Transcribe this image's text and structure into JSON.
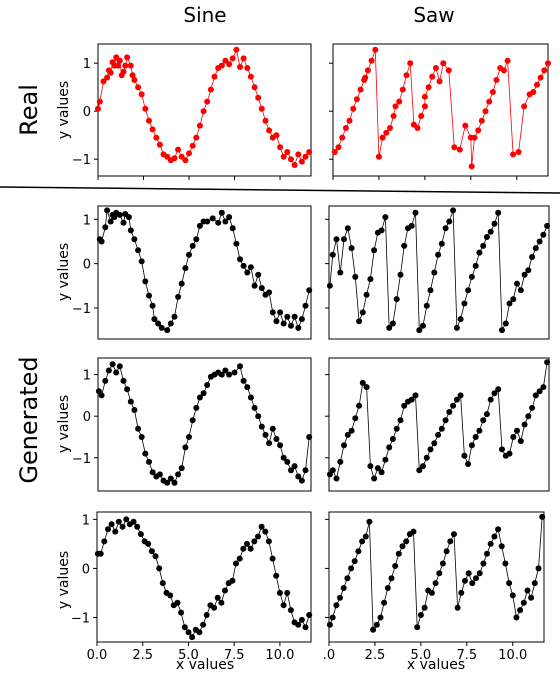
{
  "figure": {
    "col_titles": [
      "Sine",
      "Saw"
    ],
    "row_labels": [
      "Real",
      "Generated"
    ],
    "xlabel": "x values",
    "ylabel": "y values"
  },
  "chart_data": [
    {
      "type": "line",
      "id": "real-sine",
      "color": "#ff0000",
      "xlim": [
        0,
        11.7
      ],
      "ylim": [
        -1.35,
        1.4
      ],
      "x": [
        0.0,
        0.1,
        0.3,
        0.5,
        0.6,
        0.7,
        0.8,
        0.9,
        1.0,
        1.1,
        1.2,
        1.3,
        1.4,
        1.5,
        1.6,
        1.8,
        1.9,
        2.0,
        2.2,
        2.4,
        2.6,
        2.8,
        3.0,
        3.2,
        3.4,
        3.6,
        3.8,
        4.0,
        4.2,
        4.4,
        4.6,
        4.8,
        5.0,
        5.2,
        5.4,
        5.6,
        5.8,
        6.0,
        6.2,
        6.4,
        6.6,
        6.8,
        7.0,
        7.2,
        7.4,
        7.6,
        7.8,
        8.0,
        8.2,
        8.4,
        8.6,
        8.8,
        9.0,
        9.2,
        9.4,
        9.6,
        9.8,
        10.0,
        10.2,
        10.4,
        10.6,
        10.8,
        11.0,
        11.2,
        11.4,
        11.6
      ],
      "y": [
        0.05,
        0.2,
        0.62,
        0.7,
        0.85,
        0.8,
        1.02,
        0.95,
        1.12,
        0.95,
        1.05,
        0.75,
        0.82,
        0.95,
        1.12,
        0.95,
        0.75,
        0.65,
        0.5,
        0.35,
        0.05,
        -0.2,
        -0.38,
        -0.55,
        -0.7,
        -0.9,
        -0.95,
        -1.02,
        -0.98,
        -0.8,
        -0.95,
        -1.02,
        -0.88,
        -0.72,
        -0.55,
        -0.3,
        0.0,
        0.2,
        0.45,
        0.72,
        0.9,
        0.95,
        1.05,
        0.98,
        1.1,
        1.28,
        0.92,
        1.1,
        0.9,
        0.72,
        0.5,
        0.28,
        0.05,
        -0.2,
        -0.4,
        -0.55,
        -0.5,
        -0.75,
        -0.95,
        -0.85,
        -1.0,
        -1.12,
        -0.9,
        -1.05,
        -0.95,
        -0.85
      ],
      "xticks": [
        0,
        2.5,
        5,
        7.5,
        10
      ],
      "yticks": [
        -1,
        0,
        1
      ],
      "ytick_labels": [
        "−1",
        "0",
        "1"
      ]
    },
    {
      "type": "line",
      "id": "real-saw",
      "color": "#ff0000",
      "xlim": [
        0,
        11.7
      ],
      "ylim": [
        -1.35,
        1.4
      ],
      "x": [
        0.1,
        0.3,
        0.5,
        0.7,
        0.9,
        1.1,
        1.3,
        1.5,
        1.7,
        1.75,
        1.9,
        2.1,
        2.3,
        2.5,
        2.7,
        2.9,
        3.1,
        3.3,
        3.4,
        3.6,
        3.8,
        4.0,
        4.2,
        4.4,
        4.6,
        4.8,
        5.0,
        5.0,
        5.2,
        5.4,
        5.6,
        5.8,
        6.0,
        6.3,
        6.6,
        6.9,
        7.2,
        7.5,
        7.55,
        7.7,
        7.9,
        8.1,
        8.3,
        8.5,
        8.7,
        8.9,
        9.1,
        9.3,
        9.5,
        9.8,
        10.1,
        10.4,
        10.7,
        10.9,
        11.1,
        11.3,
        11.5,
        11.7
      ],
      "y": [
        -0.85,
        -0.75,
        -0.55,
        -0.35,
        -0.2,
        0.05,
        0.25,
        0.45,
        0.65,
        0.7,
        0.85,
        1.05,
        1.28,
        -0.95,
        -0.55,
        -0.45,
        -0.35,
        -0.1,
        0.1,
        0.2,
        0.45,
        0.75,
        1.0,
        -0.28,
        -0.35,
        -0.1,
        0.1,
        0.3,
        0.5,
        0.72,
        0.9,
        0.62,
        1.0,
        0.85,
        -0.75,
        -0.8,
        -0.3,
        -0.55,
        -1.15,
        -0.55,
        -0.4,
        -0.2,
        0.0,
        0.2,
        0.4,
        0.65,
        0.9,
        0.85,
        1.05,
        -0.9,
        -0.85,
        0.1,
        0.35,
        0.4,
        0.55,
        0.7,
        0.85,
        1.0
      ],
      "xticks": [
        0,
        2.5,
        5,
        7.5,
        10
      ],
      "yticks": [
        -1,
        0,
        1
      ],
      "ytick_labels": []
    },
    {
      "type": "line",
      "id": "gen-sine-1",
      "color": "#000000",
      "xlim": [
        0,
        11.7
      ],
      "ylim": [
        -1.7,
        1.3
      ],
      "x": [
        0.1,
        0.2,
        0.4,
        0.5,
        0.7,
        0.8,
        0.9,
        1.0,
        1.2,
        1.4,
        1.5,
        1.7,
        1.8,
        2.0,
        2.2,
        2.4,
        2.6,
        2.8,
        3.0,
        3.1,
        3.3,
        3.5,
        3.8,
        4.0,
        4.2,
        4.4,
        4.6,
        4.8,
        5.0,
        5.2,
        5.4,
        5.6,
        5.8,
        6.0,
        6.3,
        6.6,
        6.8,
        7.0,
        7.2,
        7.4,
        7.6,
        7.8,
        8.0,
        8.2,
        8.4,
        8.6,
        8.8,
        9.0,
        9.2,
        9.4,
        9.6,
        9.8,
        10.0,
        10.2,
        10.4,
        10.6,
        10.8,
        11.0,
        11.2,
        11.4,
        11.6
      ],
      "y": [
        0.55,
        0.5,
        0.82,
        1.2,
        0.95,
        1.1,
        1.05,
        1.15,
        1.1,
        0.92,
        1.12,
        1.05,
        0.75,
        0.55,
        0.3,
        0.05,
        -0.4,
        -0.72,
        -0.95,
        -1.25,
        -1.35,
        -1.45,
        -1.5,
        -1.35,
        -1.2,
        -0.75,
        -0.45,
        -0.1,
        0.2,
        0.4,
        0.55,
        0.85,
        0.95,
        0.95,
        1.02,
        0.92,
        1.15,
        0.95,
        1.05,
        0.8,
        0.45,
        0.1,
        -0.05,
        -0.2,
        -0.08,
        -0.5,
        -0.25,
        -0.55,
        -0.7,
        -0.65,
        -1.1,
        -1.3,
        -1.1,
        -1.35,
        -1.2,
        -1.4,
        -1.2,
        -1.45,
        -1.25,
        -0.95,
        -0.6
      ],
      "xticks": [
        0,
        2.5,
        5,
        7.5,
        10
      ],
      "yticks": [
        -1,
        0,
        1
      ],
      "ytick_labels": [
        "−1",
        "0",
        "1"
      ]
    },
    {
      "type": "line",
      "id": "gen-saw-1",
      "color": "#000000",
      "xlim": [
        0,
        11.7
      ],
      "ylim": [
        -1.7,
        1.3
      ],
      "x": [
        0.05,
        0.2,
        0.4,
        0.6,
        0.8,
        1.0,
        1.2,
        1.4,
        1.6,
        1.8,
        2.0,
        2.2,
        2.4,
        2.6,
        2.8,
        3.0,
        3.2,
        3.4,
        3.6,
        3.8,
        4.0,
        4.2,
        4.4,
        4.6,
        4.8,
        5.0,
        5.2,
        5.4,
        5.6,
        5.8,
        6.0,
        6.2,
        6.4,
        6.6,
        6.8,
        7.0,
        7.2,
        7.4,
        7.6,
        7.8,
        8.0,
        8.2,
        8.4,
        8.6,
        8.8,
        9.0,
        9.2,
        9.4,
        9.6,
        9.8,
        10.0,
        10.2,
        10.4,
        10.6,
        10.8,
        11.0,
        11.2,
        11.4,
        11.6
      ],
      "y": [
        -0.5,
        0.2,
        0.55,
        -0.2,
        0.55,
        0.8,
        0.35,
        -0.3,
        -1.3,
        -1.1,
        -0.7,
        -0.35,
        0.3,
        0.7,
        0.75,
        1.05,
        -1.45,
        -1.35,
        -0.8,
        -0.25,
        0.4,
        0.8,
        0.85,
        1.15,
        -1.5,
        -1.4,
        -0.95,
        -0.6,
        -0.2,
        0.2,
        0.45,
        0.8,
        0.95,
        1.2,
        -1.45,
        -1.25,
        -0.9,
        -0.6,
        -0.3,
        -0.05,
        0.25,
        0.4,
        0.6,
        0.72,
        0.9,
        1.15,
        -1.5,
        -1.35,
        -0.9,
        -0.8,
        -0.45,
        -0.6,
        -0.25,
        -0.15,
        0.15,
        0.35,
        0.5,
        0.65,
        0.85
      ],
      "xticks": [
        0,
        2.5,
        5,
        7.5,
        10
      ],
      "yticks": [
        -1,
        0,
        1
      ],
      "ytick_labels": []
    },
    {
      "type": "line",
      "id": "gen-sine-2",
      "color": "#000000",
      "xlim": [
        0,
        11.7
      ],
      "ylim": [
        -1.8,
        1.4
      ],
      "x": [
        0.05,
        0.2,
        0.4,
        0.6,
        0.8,
        1.0,
        1.2,
        1.4,
        1.6,
        1.8,
        2.0,
        2.2,
        2.4,
        2.6,
        2.8,
        3.0,
        3.2,
        3.4,
        3.6,
        3.8,
        4.0,
        4.2,
        4.4,
        4.6,
        4.8,
        5.0,
        5.2,
        5.4,
        5.6,
        5.8,
        6.0,
        6.2,
        6.4,
        6.6,
        6.8,
        7.0,
        7.2,
        7.5,
        7.8,
        8.0,
        8.2,
        8.4,
        8.6,
        8.8,
        9.0,
        9.2,
        9.4,
        9.6,
        9.8,
        10.0,
        10.2,
        10.4,
        10.6,
        10.8,
        11.0,
        11.2,
        11.4,
        11.6
      ],
      "y": [
        0.6,
        0.5,
        0.85,
        1.1,
        1.25,
        1.05,
        1.2,
        0.85,
        0.65,
        0.35,
        0.15,
        -0.3,
        -0.5,
        -0.9,
        -1.1,
        -1.35,
        -1.45,
        -1.4,
        -1.55,
        -1.6,
        -1.5,
        -1.6,
        -1.4,
        -1.25,
        -0.75,
        -0.5,
        -0.1,
        0.2,
        0.45,
        0.55,
        0.75,
        0.95,
        1.0,
        1.05,
        1.0,
        1.1,
        1.0,
        1.05,
        1.2,
        0.85,
        0.7,
        0.45,
        0.2,
        0.0,
        -0.25,
        -0.45,
        -0.65,
        -0.3,
        -0.55,
        -0.7,
        -1.0,
        -1.1,
        -1.3,
        -1.2,
        -1.45,
        -1.55,
        -1.3,
        -0.5
      ],
      "xticks": [
        0,
        2.5,
        5,
        7.5,
        10
      ],
      "yticks": [
        -1,
        0,
        1
      ],
      "ytick_labels": [
        "−1",
        "0",
        "1"
      ]
    },
    {
      "type": "line",
      "id": "gen-saw-2",
      "color": "#000000",
      "xlim": [
        0,
        11.7
      ],
      "ylim": [
        -1.8,
        1.4
      ],
      "x": [
        0.05,
        0.2,
        0.4,
        0.6,
        0.8,
        1.0,
        1.2,
        1.4,
        1.6,
        1.8,
        2.0,
        2.2,
        2.4,
        2.6,
        2.8,
        3.0,
        3.2,
        3.4,
        3.6,
        3.8,
        4.0,
        4.2,
        4.4,
        4.6,
        4.8,
        5.0,
        5.2,
        5.4,
        5.6,
        5.8,
        6.0,
        6.2,
        6.4,
        6.6,
        6.8,
        7.0,
        7.2,
        7.4,
        7.6,
        7.8,
        8.0,
        8.2,
        8.4,
        8.6,
        8.8,
        9.0,
        9.2,
        9.4,
        9.6,
        9.8,
        10.0,
        10.2,
        10.4,
        10.6,
        10.8,
        11.0,
        11.2,
        11.4,
        11.6
      ],
      "y": [
        -1.4,
        -1.3,
        -1.5,
        -1.1,
        -0.7,
        -0.45,
        -0.35,
        -0.05,
        0.25,
        0.8,
        0.7,
        -1.2,
        -1.5,
        -1.25,
        -1.35,
        -1.05,
        -0.75,
        -0.55,
        -0.3,
        -0.1,
        0.25,
        0.35,
        0.4,
        0.5,
        -1.3,
        -1.2,
        -1.0,
        -0.8,
        -0.65,
        -0.45,
        -0.3,
        -0.1,
        0.1,
        0.25,
        0.4,
        0.5,
        -0.95,
        -1.15,
        -0.7,
        -0.5,
        -0.35,
        -0.1,
        0.05,
        0.4,
        0.55,
        0.65,
        -0.8,
        -0.95,
        -0.9,
        -0.5,
        -0.35,
        -0.6,
        -0.2,
        0.0,
        0.2,
        0.5,
        0.6,
        0.7,
        1.3
      ],
      "xticks": [
        0,
        2.5,
        5,
        7.5,
        10
      ],
      "yticks": [
        -1,
        0,
        1
      ],
      "ytick_labels": []
    },
    {
      "type": "line",
      "id": "gen-sine-3",
      "color": "#000000",
      "xlim": [
        0,
        11.7
      ],
      "ylim": [
        -1.5,
        1.15
      ],
      "x": [
        0.05,
        0.2,
        0.4,
        0.6,
        0.8,
        1.0,
        1.2,
        1.4,
        1.6,
        1.8,
        2.0,
        2.2,
        2.4,
        2.6,
        2.8,
        3.0,
        3.2,
        3.4,
        3.6,
        3.8,
        4.0,
        4.2,
        4.4,
        4.6,
        4.8,
        5.0,
        5.2,
        5.4,
        5.6,
        5.8,
        6.0,
        6.2,
        6.4,
        6.6,
        6.8,
        7.0,
        7.2,
        7.4,
        7.6,
        7.8,
        8.0,
        8.2,
        8.4,
        8.6,
        8.8,
        9.0,
        9.2,
        9.4,
        9.6,
        9.8,
        10.0,
        10.2,
        10.4,
        10.6,
        10.8,
        11.0,
        11.2,
        11.4,
        11.6
      ],
      "y": [
        0.3,
        0.3,
        0.55,
        0.8,
        0.9,
        0.75,
        0.95,
        0.85,
        1.0,
        0.9,
        0.95,
        0.85,
        0.7,
        0.55,
        0.5,
        0.35,
        0.25,
        0.0,
        -0.3,
        -0.5,
        -0.55,
        -0.75,
        -0.7,
        -0.9,
        -1.2,
        -1.3,
        -1.4,
        -1.25,
        -1.3,
        -1.15,
        -0.95,
        -0.75,
        -0.8,
        -0.6,
        -0.7,
        -0.45,
        -0.3,
        -0.25,
        0.1,
        0.2,
        0.4,
        0.5,
        0.4,
        0.55,
        0.65,
        0.85,
        0.75,
        0.55,
        0.2,
        -0.15,
        -0.5,
        -0.75,
        -0.5,
        -0.85,
        -1.1,
        -1.15,
        -1.05,
        -1.2,
        -0.95
      ],
      "xticks": [
        0,
        2.5,
        5,
        7.5,
        10
      ],
      "yticks": [
        -1,
        0,
        1
      ],
      "ytick_labels": [
        "−1",
        "0",
        "1"
      ]
    },
    {
      "type": "line",
      "id": "gen-saw-3",
      "color": "#000000",
      "xlim": [
        0,
        11.7
      ],
      "ylim": [
        -1.5,
        1.15
      ],
      "x": [
        0.05,
        0.2,
        0.4,
        0.6,
        0.8,
        1.0,
        1.2,
        1.4,
        1.6,
        1.8,
        2.0,
        2.2,
        2.4,
        2.6,
        2.8,
        3.0,
        3.2,
        3.4,
        3.6,
        3.8,
        4.0,
        4.2,
        4.4,
        4.6,
        4.8,
        5.0,
        5.2,
        5.4,
        5.6,
        5.8,
        6.0,
        6.2,
        6.4,
        6.6,
        6.8,
        7.0,
        7.2,
        7.4,
        7.6,
        7.8,
        8.0,
        8.2,
        8.4,
        8.6,
        8.8,
        9.0,
        9.2,
        9.4,
        9.6,
        9.8,
        10.0,
        10.2,
        10.4,
        10.6,
        10.8,
        11.0,
        11.2,
        11.4,
        11.6
      ],
      "y": [
        -1.15,
        -1.0,
        -0.75,
        -0.6,
        -0.4,
        -0.2,
        0.0,
        0.15,
        0.35,
        0.55,
        0.65,
        0.95,
        -1.25,
        -1.15,
        -1.0,
        -0.7,
        -0.4,
        -0.2,
        0.05,
        0.3,
        0.45,
        0.55,
        0.7,
        0.75,
        -1.2,
        -0.95,
        -0.8,
        -0.45,
        -0.5,
        -0.3,
        -0.1,
        0.1,
        0.35,
        0.55,
        0.7,
        -0.8,
        -0.5,
        -0.25,
        -0.1,
        -0.3,
        -0.2,
        -0.1,
        0.1,
        0.3,
        0.5,
        0.65,
        0.8,
        0.45,
        0.1,
        -0.3,
        -0.55,
        -1.0,
        -0.85,
        -0.7,
        -0.45,
        -0.6,
        -0.3,
        0.0,
        1.05
      ],
      "xticks": [
        0,
        2.5,
        5,
        7.5,
        10
      ],
      "yticks": [
        -1,
        0,
        1
      ],
      "ytick_labels": [],
      "xtick_labels": [
        ".0",
        "2.5",
        "5.0",
        "7.5",
        "10.0"
      ]
    }
  ],
  "bottom_left_xtick_labels": [
    "0.0",
    "2.5",
    "5.0",
    "7.5",
    "10.0"
  ]
}
